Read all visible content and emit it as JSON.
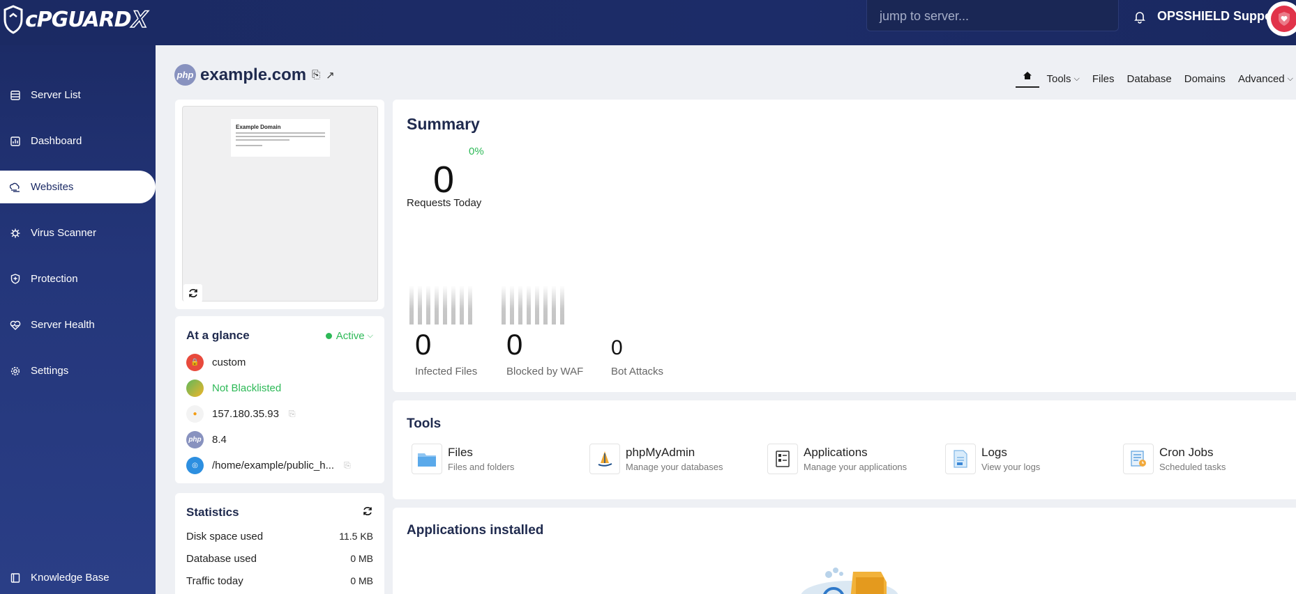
{
  "brand": {
    "name": "cPGUARD",
    "suffix": "X"
  },
  "search": {
    "placeholder": "jump to server..."
  },
  "user": {
    "name": "OPSSHIELD Support"
  },
  "sidebar": {
    "items": [
      {
        "label": "Server List",
        "icon": "server-list-icon"
      },
      {
        "label": "Dashboard",
        "icon": "dashboard-icon"
      },
      {
        "label": "Websites",
        "icon": "websites-icon",
        "active": true
      },
      {
        "label": "Virus Scanner",
        "icon": "virus-icon"
      },
      {
        "label": "Protection",
        "icon": "shield-icon"
      },
      {
        "label": "Server Health",
        "icon": "heart-pulse-icon"
      },
      {
        "label": "Settings",
        "icon": "gear-icon"
      }
    ],
    "bottom": {
      "label": "Knowledge Base",
      "icon": "book-icon"
    }
  },
  "site": {
    "domain": "example.com",
    "php_badge": "php"
  },
  "topnav": {
    "tools": "Tools",
    "files": "Files",
    "database": "Database",
    "domains": "Domains",
    "advanced": "Advanced"
  },
  "preview": {
    "title": "Example Domain"
  },
  "glance": {
    "title": "At a glance",
    "status": "Active",
    "ssl": "custom",
    "blacklist": "Not Blacklisted",
    "ip": "157.180.35.93",
    "php": "8.4",
    "path": "/home/example/public_h..."
  },
  "statistics": {
    "title": "Statistics",
    "rows": [
      {
        "label": "Disk space used",
        "value": "11.5 KB"
      },
      {
        "label": "Database used",
        "value": "0 MB"
      },
      {
        "label": "Traffic today",
        "value": "0 MB"
      }
    ]
  },
  "summary": {
    "title": "Summary",
    "percent": "0%",
    "requests_value": "0",
    "requests_label": "Requests Today",
    "infected_value": "0",
    "infected_label": "Infected Files",
    "waf_value": "0",
    "waf_label": "Blocked by WAF",
    "bot_value": "0",
    "bot_label": "Bot Attacks"
  },
  "tools": {
    "title": "Tools",
    "items": [
      {
        "name": "Files",
        "desc": "Files and folders"
      },
      {
        "name": "phpMyAdmin",
        "desc": "Manage your databases"
      },
      {
        "name": "Applications",
        "desc": "Manage your applications"
      },
      {
        "name": "Logs",
        "desc": "View your logs"
      },
      {
        "name": "Cron Jobs",
        "desc": "Scheduled tasks"
      }
    ]
  },
  "apps": {
    "title": "Applications installed"
  },
  "colors": {
    "sidebar": "#1c2b66",
    "accent_green": "#2db957",
    "heading": "#1f2a4e"
  }
}
